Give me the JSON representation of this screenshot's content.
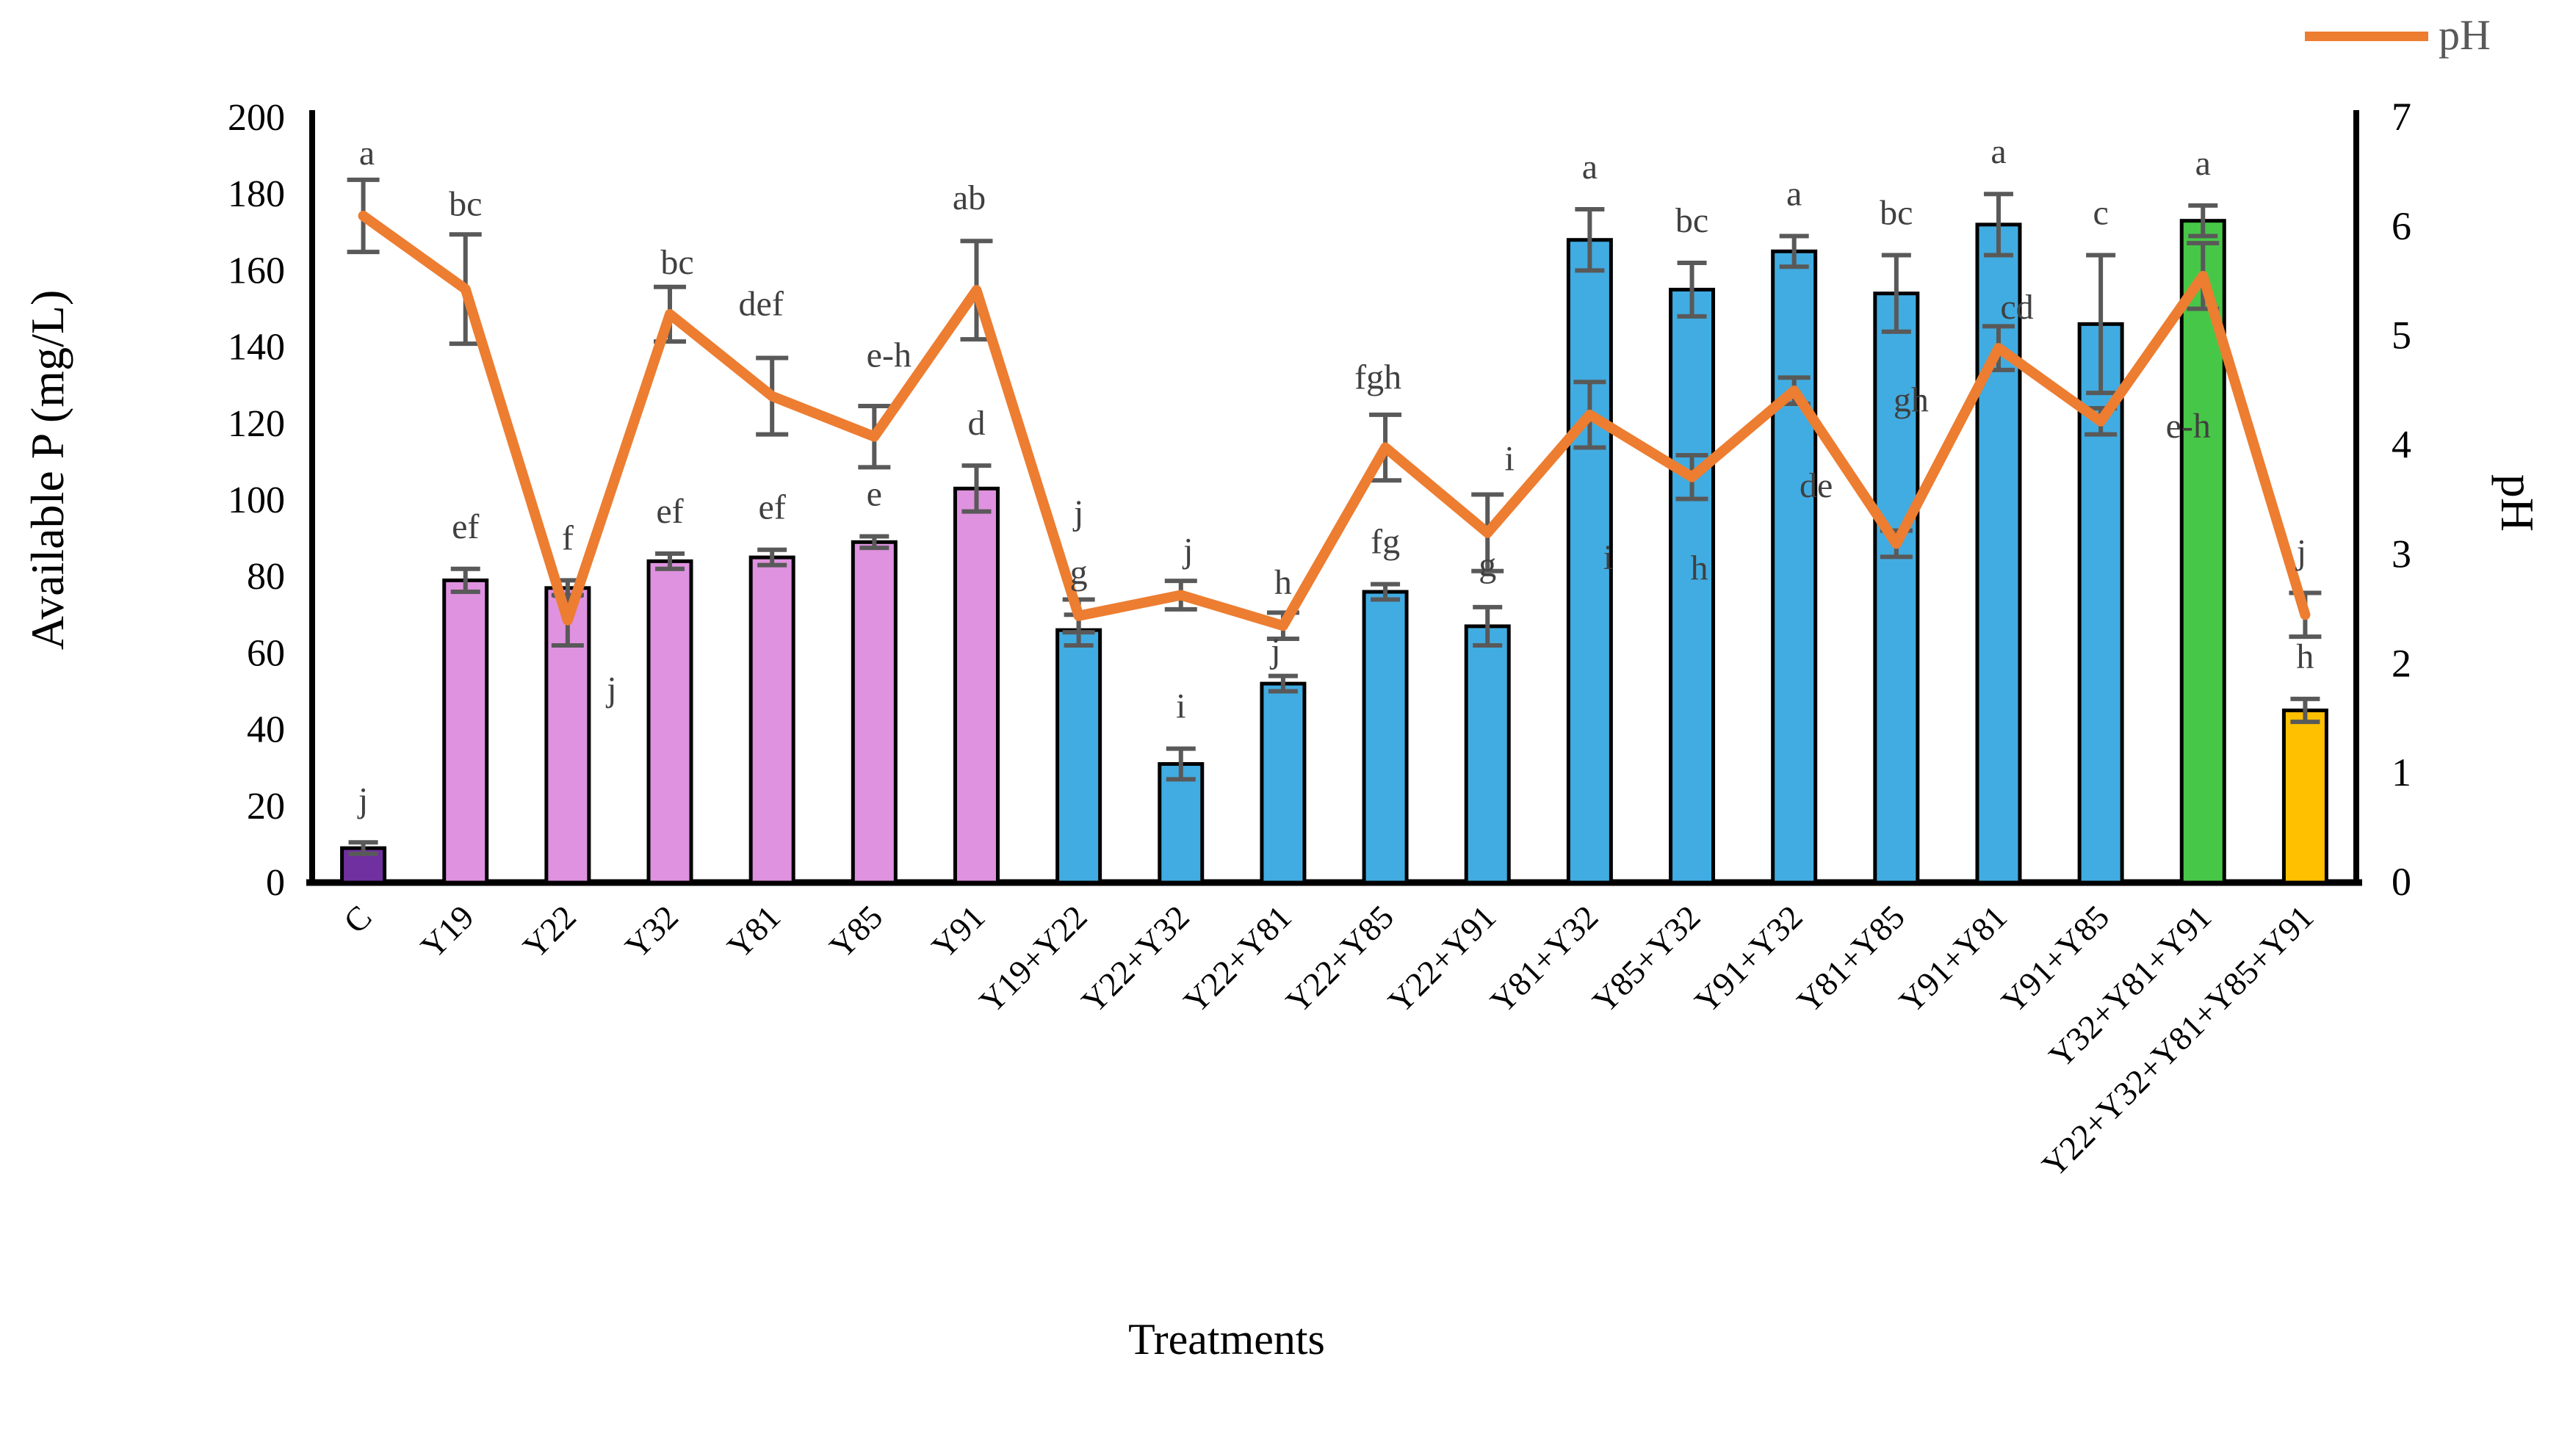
{
  "chart_data": {
    "type": "bar+line",
    "xlabel": "Treatments",
    "ylabel_left": "Available P  (mg/L)",
    "ylabel_right": "pH",
    "axis_left": {
      "min": 0,
      "max": 200,
      "step": 20
    },
    "axis_right": {
      "min": 0,
      "max": 7,
      "step": 1
    },
    "legend": {
      "ph_label": "pH"
    },
    "grid": "off",
    "legend_position": "top-right",
    "colors": {
      "line": "#ED7D31",
      "error_bar": "#595959",
      "letter": "#404040",
      "axis": "#000000",
      "bar_colors": [
        "#7030A0",
        "#DF92DF",
        "#DF92DF",
        "#DF92DF",
        "#DF92DF",
        "#DF92DF",
        "#DF92DF",
        "#41ACE1",
        "#41ACE1",
        "#41ACE1",
        "#41ACE1",
        "#41ACE1",
        "#41ACE1",
        "#41ACE1",
        "#41ACE1",
        "#41ACE1",
        "#41ACE1",
        "#41ACE1",
        "#47C747",
        "#FFC000"
      ]
    },
    "categories": [
      "C",
      "Y19",
      "Y22",
      "Y32",
      "Y81",
      "Y85",
      "Y91",
      "Y19+Y22",
      "Y22+Y32",
      "Y22+Y81",
      "Y22+Y85",
      "Y22+Y91",
      "Y81+Y32",
      "Y85+Y32",
      "Y91+Y32",
      "Y81+Y85",
      "Y91+Y81",
      "Y91+Y85",
      "Y32+Y81+Y91",
      "Y22+Y32+Y81+Y85+Y91"
    ],
    "series": [
      {
        "name": "Available P",
        "type": "bar",
        "axis": "left",
        "values": [
          9,
          79,
          77,
          84,
          85,
          89,
          103,
          66,
          31,
          52,
          76,
          67,
          168,
          155,
          165,
          154,
          172,
          146,
          173,
          45
        ],
        "errors": [
          1.5,
          3,
          2,
          2,
          2,
          1.5,
          6,
          4,
          4,
          2,
          2,
          5,
          8,
          7,
          4,
          10,
          8,
          18,
          4,
          3
        ],
        "letters": [
          "j",
          "ef",
          "f",
          "ef",
          "ef",
          "e",
          "d",
          "g",
          "i",
          "h",
          "fg",
          "g",
          "a",
          "bc",
          "a",
          "bc",
          "a",
          "c",
          "a",
          "h"
        ],
        "letter_dy_override": {
          "9": -122
        }
      },
      {
        "name": "pH",
        "type": "line",
        "axis": "right",
        "values": [
          6.1,
          5.43,
          2.4,
          5.2,
          4.45,
          4.08,
          5.42,
          2.44,
          2.63,
          2.35,
          3.98,
          3.2,
          4.28,
          3.71,
          4.5,
          3.1,
          4.89,
          4.22,
          5.55,
          2.45
        ],
        "errors": [
          0.33,
          0.5,
          0.23,
          0.25,
          0.35,
          0.28,
          0.45,
          0.15,
          0.13,
          0.12,
          0.3,
          0.35,
          0.3,
          0.2,
          0.12,
          0.12,
          0.2,
          0.12,
          0.3,
          0.2
        ],
        "letters": [
          "a",
          "bc",
          "j",
          "bc",
          "def",
          "e-h",
          "ab",
          "j",
          "j",
          "j",
          "fgh",
          "i",
          "i",
          "h",
          "de",
          "gh",
          "cd",
          "",
          "e-h",
          "j"
        ],
        "letter_offsets": [
          [
            5,
            -70
          ],
          [
            0,
            -100
          ],
          [
            60,
            110
          ],
          [
            10,
            -55
          ],
          [
            -15,
            -110
          ],
          [
            20,
            -95
          ],
          [
            -10,
            -110
          ],
          [
            0,
            -125
          ],
          [
            10,
            -45
          ],
          [
            -10,
            50
          ],
          [
            -10,
            -80
          ],
          [
            30,
            -85
          ],
          [
            25,
            210
          ],
          [
            10,
            140
          ],
          [
            30,
            145
          ],
          [
            20,
            -180
          ],
          [
            25,
            -40
          ],
          [
            0,
            0
          ],
          [
            -20,
            220
          ],
          [
            -5,
            -70
          ]
        ]
      }
    ]
  }
}
